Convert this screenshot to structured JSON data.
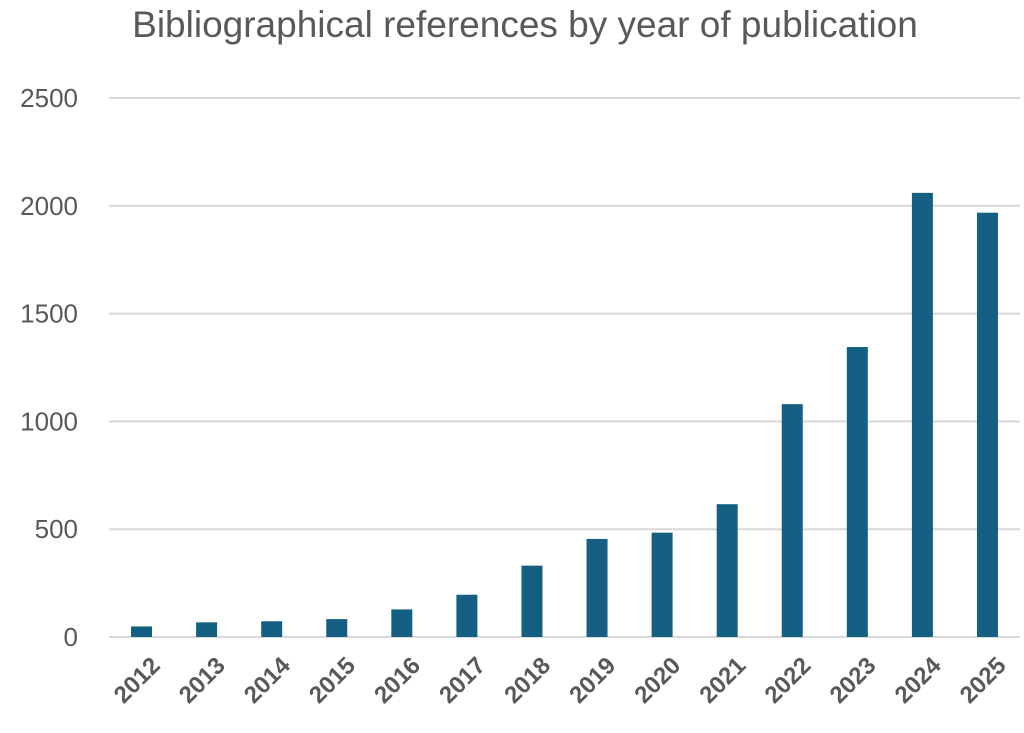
{
  "chart_data": {
    "type": "bar",
    "title": "Bibliographical references by year of publication",
    "xlabel": "",
    "ylabel": "",
    "categories": [
      "2012",
      "2013",
      "2014",
      "2015",
      "2016",
      "2017",
      "2018",
      "2019",
      "2020",
      "2021",
      "2022",
      "2023",
      "2024",
      "2025"
    ],
    "values": [
      49,
      68,
      73,
      83,
      128,
      196,
      331,
      455,
      484,
      616,
      1080,
      1345,
      2060,
      1968
    ],
    "ylim": [
      0,
      2500
    ],
    "yticks": [
      "0",
      "500",
      "1000",
      "1500",
      "2000",
      "2500"
    ],
    "grid": true,
    "legend": "none",
    "bar_color": "#156082"
  }
}
